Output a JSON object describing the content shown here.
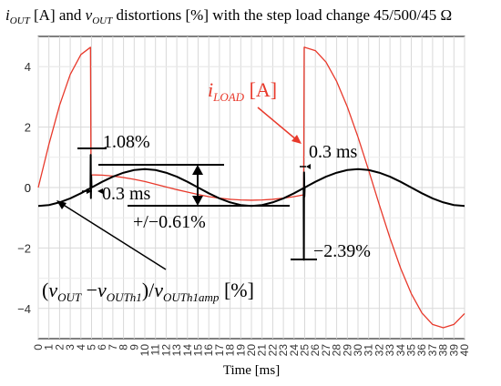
{
  "chart_data": {
    "type": "line",
    "title": {
      "i_sym": "i",
      "i_sub": "OUT",
      "i_unit": " [A] and ",
      "v_sym": "v",
      "v_sub": "OUT",
      "rest": " distortions [%] with the step load change 45/500/45 Ω"
    },
    "xlabel": "Time [ms]",
    "xlim": [
      0,
      40
    ],
    "ylim": [
      -5,
      5
    ],
    "xticks": [
      "0",
      "1",
      "2",
      "3",
      "4",
      "5",
      "6",
      "7",
      "8",
      "9",
      "10",
      "11",
      "12",
      "13",
      "14",
      "15",
      "16",
      "17",
      "18",
      "19",
      "20",
      "21",
      "22",
      "23",
      "24",
      "25",
      "26",
      "27",
      "28",
      "29",
      "30",
      "31",
      "32",
      "33",
      "34",
      "35",
      "36",
      "37",
      "38",
      "39",
      "40"
    ],
    "yticks": [
      "4",
      "2",
      "0",
      "−2",
      "−4"
    ],
    "ytick_values": [
      4,
      2,
      0,
      -2,
      -4
    ],
    "grid": true,
    "series": [
      {
        "name": "iLOAD [A]",
        "color": "#e8392b",
        "x": [
          0,
          1,
          2,
          3,
          4,
          4.9,
          4.95,
          5,
          6,
          7,
          8,
          9,
          10,
          11,
          12,
          13,
          14,
          15,
          16,
          17,
          18,
          19,
          20,
          21,
          22,
          23,
          24,
          24.9,
          24.95,
          25,
          26,
          27,
          28,
          29,
          30,
          31,
          32,
          33,
          34,
          35,
          36,
          37,
          38,
          39,
          40
        ],
        "y": [
          0,
          1.43,
          2.72,
          3.74,
          4.4,
          4.64,
          0.42,
          0.42,
          0.41,
          0.38,
          0.33,
          0.27,
          0.2,
          0.11,
          0.02,
          -0.07,
          -0.15,
          -0.23,
          -0.3,
          -0.35,
          -0.39,
          -0.41,
          -0.42,
          -0.41,
          -0.39,
          -0.35,
          -0.3,
          -0.24,
          4.64,
          4.64,
          4.53,
          4.15,
          3.51,
          2.67,
          1.67,
          0.57,
          -0.57,
          -1.67,
          -2.67,
          -3.51,
          -4.15,
          -4.53,
          -4.64,
          -4.53,
          -4.17
        ]
      },
      {
        "name": "(vOUT − vOUTh1)/vOUTh1amp [%]",
        "color": "#000000",
        "x": [
          0,
          1,
          2,
          3,
          4,
          4.9,
          4.92,
          4.94,
          4.97,
          5,
          6,
          7,
          8,
          9,
          10,
          11,
          12,
          13,
          14,
          15,
          16,
          17,
          18,
          19,
          20,
          21,
          22,
          23,
          24,
          24.9,
          24.92,
          24.94,
          24.97,
          25,
          26,
          27,
          28,
          29,
          30,
          31,
          32,
          33,
          34,
          35,
          36,
          37,
          38,
          39,
          40
        ],
        "y": [
          -0.61,
          -0.58,
          -0.49,
          -0.36,
          -0.19,
          -0.02,
          1.08,
          -0.35,
          0.4,
          0.0,
          0.19,
          0.36,
          0.49,
          0.58,
          0.61,
          0.58,
          0.49,
          0.36,
          0.19,
          0.0,
          -0.19,
          -0.36,
          -0.49,
          -0.58,
          -0.61,
          -0.58,
          -0.49,
          -0.36,
          -0.19,
          -0.02,
          -2.39,
          0.5,
          -0.3,
          0.0,
          0.19,
          0.36,
          0.49,
          0.58,
          0.61,
          0.58,
          0.49,
          0.36,
          0.19,
          0.0,
          -0.19,
          -0.36,
          -0.49,
          -0.58,
          -0.61
        ]
      }
    ],
    "annotations": {
      "peak_pos": "1.08%",
      "delay_1": "0.3 ms",
      "delay_2": "0.3 ms",
      "pm": "+/−0.61%",
      "peak_neg": "−2.39%",
      "iload": {
        "sym": "i",
        "sub": "LOAD",
        "unit": " [A]"
      },
      "vlabel": {
        "open": "(",
        "v1": "v",
        "s1": "OUT",
        "minus": " −",
        "v2": "v",
        "s2": "OUTh1",
        "slash": ")/",
        "v3": "v",
        "s3": "OUTh1amp",
        "unit": " [%]"
      }
    }
  }
}
